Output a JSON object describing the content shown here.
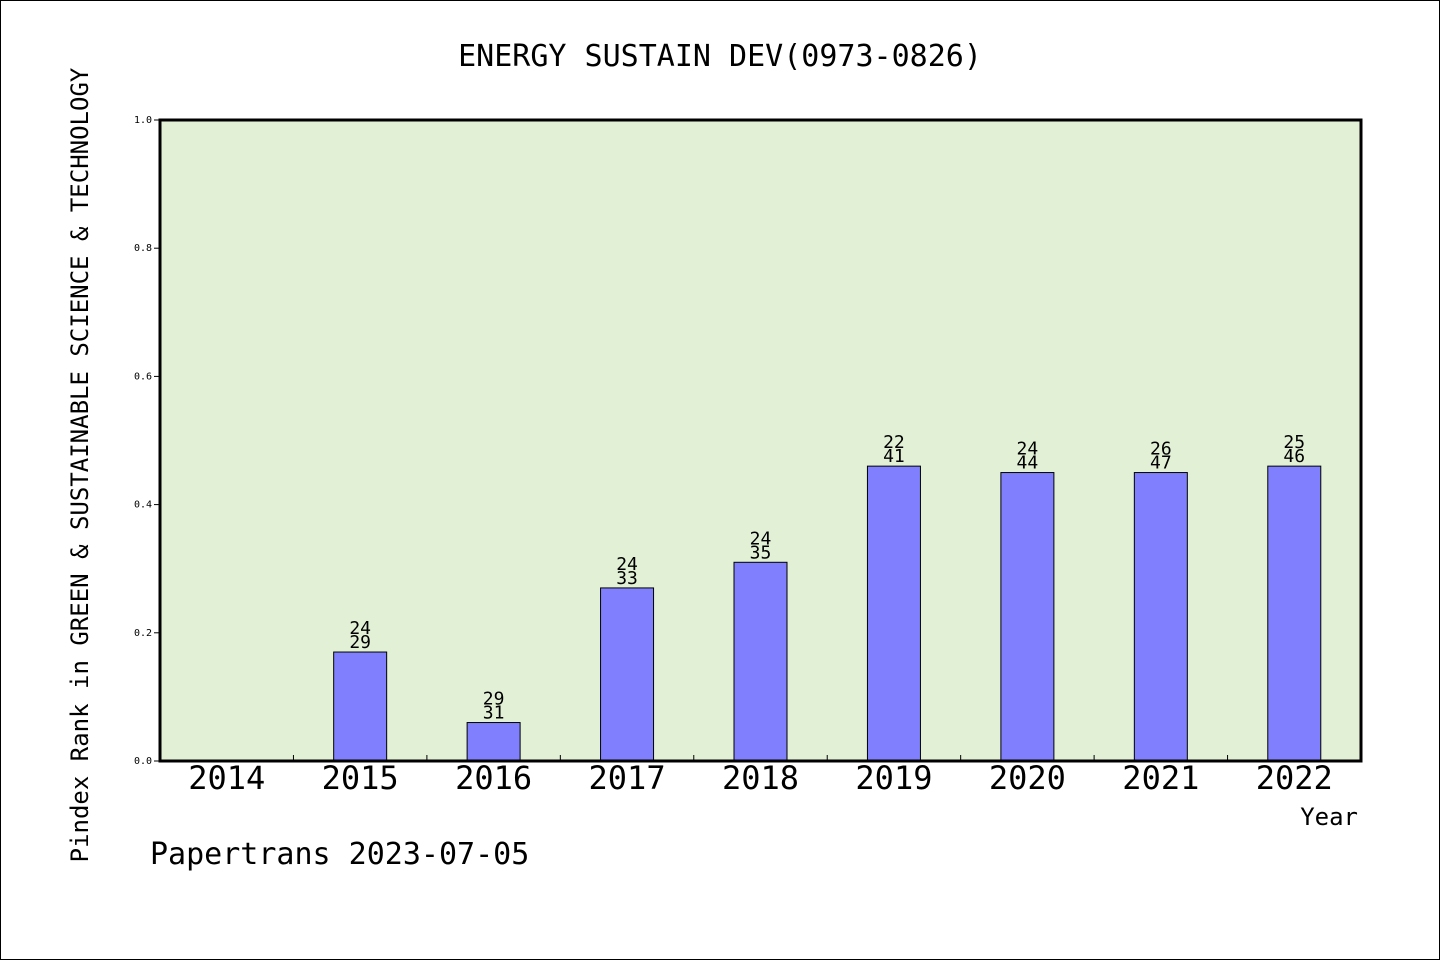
{
  "chart_data": {
    "type": "bar",
    "title": "ENERGY SUSTAIN DEV(0973-0826)",
    "xlabel": "Year",
    "ylabel": "Pindex Rank in GREEN & SUSTAINABLE SCIENCE & TECHNOLOGY",
    "ylim": [
      0.0,
      1.0
    ],
    "yticks": [
      "0.0",
      "0.2",
      "0.4",
      "0.6",
      "0.8",
      "1.0"
    ],
    "categories": [
      "2014",
      "2015",
      "2016",
      "2017",
      "2018",
      "2019",
      "2020",
      "2021",
      "2022"
    ],
    "values": [
      null,
      0.17,
      0.06,
      0.27,
      0.31,
      0.46,
      0.45,
      0.45,
      0.46
    ],
    "labels_top": [
      "",
      "24",
      "29",
      "24",
      "24",
      "22",
      "24",
      "26",
      "25"
    ],
    "labels_bottom": [
      "",
      "29",
      "31",
      "33",
      "35",
      "41",
      "44",
      "47",
      "46"
    ],
    "plot_bg": "#e2f0d6",
    "bar_color": "#8080ff",
    "grid": false
  },
  "footer": "Papertrans 2023-07-05"
}
